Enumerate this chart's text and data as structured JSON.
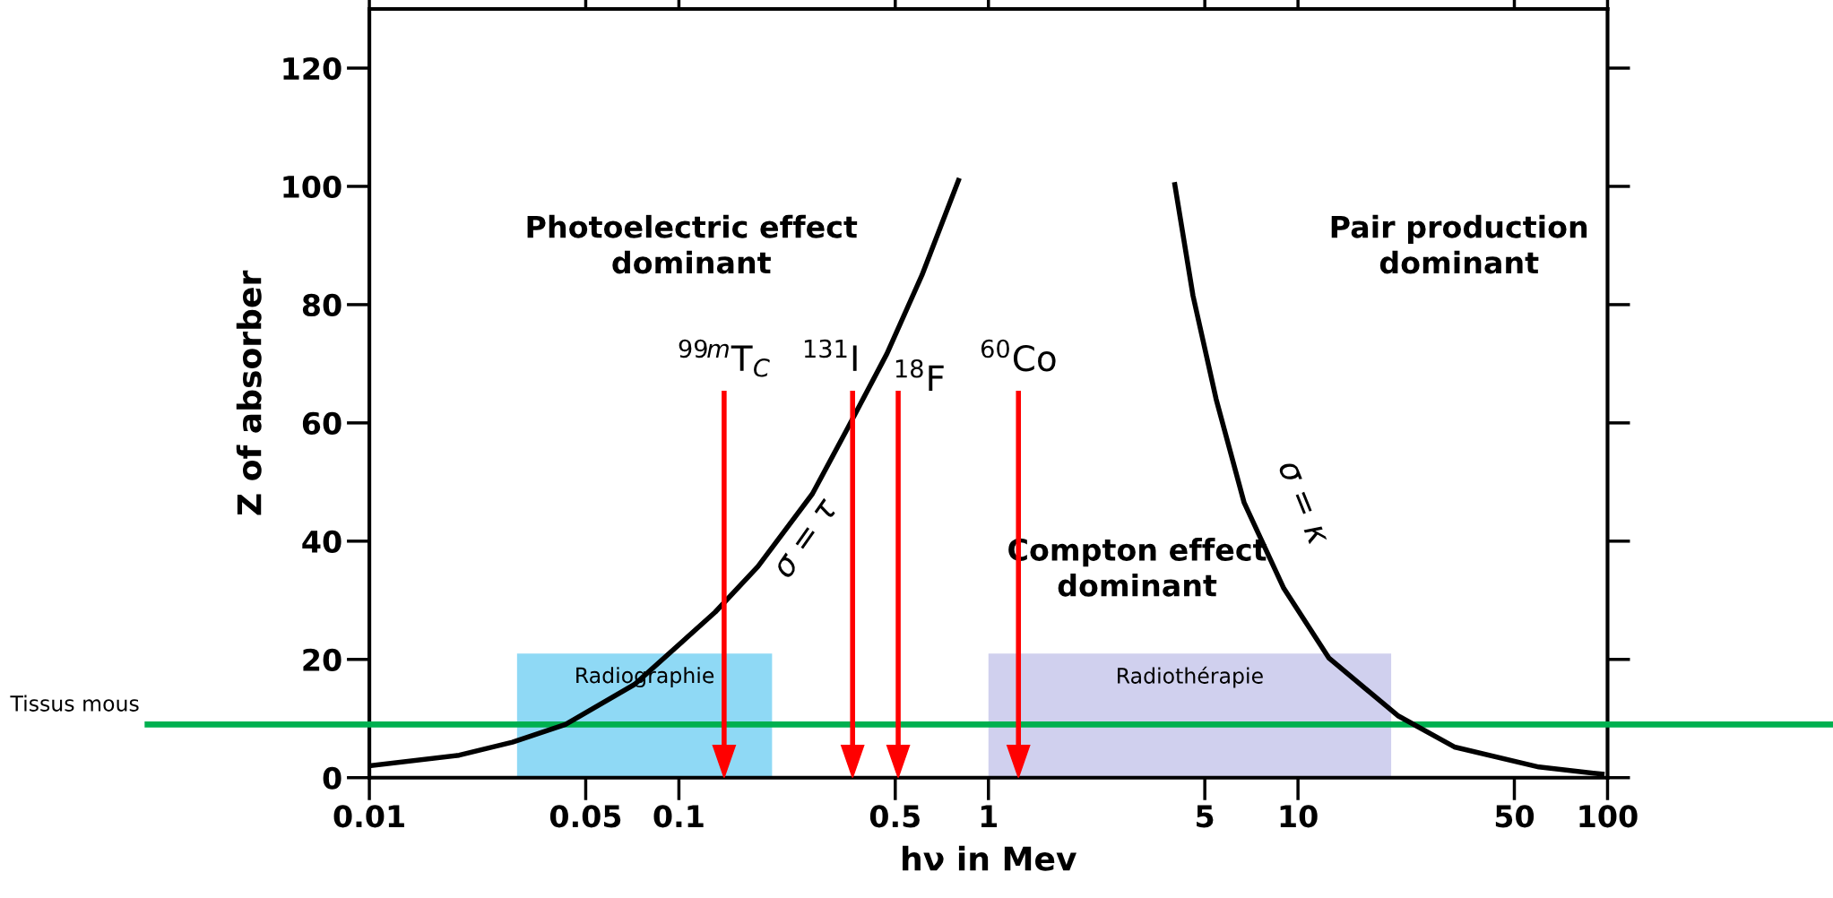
{
  "chart_data": {
    "type": "line",
    "xlabel": "hν in Mev",
    "ylabel": "Z of absorber",
    "log": "x",
    "xlim": [
      0.01,
      100
    ],
    "ylim": [
      0,
      130
    ],
    "xticks": [
      0.01,
      0.05,
      0.1,
      0.5,
      1,
      5,
      10,
      50,
      100
    ],
    "yticks": [
      0,
      20,
      40,
      60,
      80,
      100,
      120
    ],
    "series": [
      {
        "name": "σ = τ",
        "color": "#000000",
        "x": [
          0.01,
          0.0195,
          0.029,
          0.043,
          0.072,
          0.131,
          0.18,
          0.27,
          0.35,
          0.47,
          0.61,
          0.8
        ],
        "values": [
          2,
          3.8,
          6,
          9,
          15.8,
          28,
          35.7,
          48,
          59,
          71.7,
          85,
          101
        ]
      },
      {
        "name": "σ = κ",
        "color": "#000000",
        "x": [
          4.0,
          4.58,
          5.44,
          6.7,
          9.0,
          12.6,
          21,
          32,
          60,
          96
        ],
        "values": [
          100.3,
          81.5,
          64,
          46.5,
          32,
          20.2,
          10.5,
          5.2,
          1.8,
          0.6
        ]
      }
    ],
    "bands": [
      {
        "axis": "x",
        "from": 0.03,
        "to": 0.2,
        "label": "Radiographie",
        "color": "#8fd9f5"
      },
      {
        "axis": "x",
        "from": 1,
        "to": 20,
        "label": "Radiothérapie",
        "color": "#d0d0ee"
      }
    ],
    "ref_lines": [
      {
        "axis": "y",
        "value": 9,
        "label": "Tissus mous",
        "color": "#00b050"
      },
      {
        "axis": "x",
        "value": 0.14,
        "label": "$^{99m}$T$_{C}$",
        "color": "#ff0000"
      },
      {
        "axis": "x",
        "value": 0.364,
        "label": "$^{131}$I",
        "color": "#ff0000"
      },
      {
        "axis": "x",
        "value": 0.511,
        "label": "$^{18}$F",
        "color": "#ff0000"
      },
      {
        "axis": "x",
        "value": 1.25,
        "label": "$^{60}$Co",
        "color": "#ff0000"
      }
    ],
    "annotations": [
      "Photoelectric effect\ndominant",
      "Compton effect\ndominant",
      "Pair production\ndominant"
    ],
    "grid": false,
    "legend": false
  }
}
